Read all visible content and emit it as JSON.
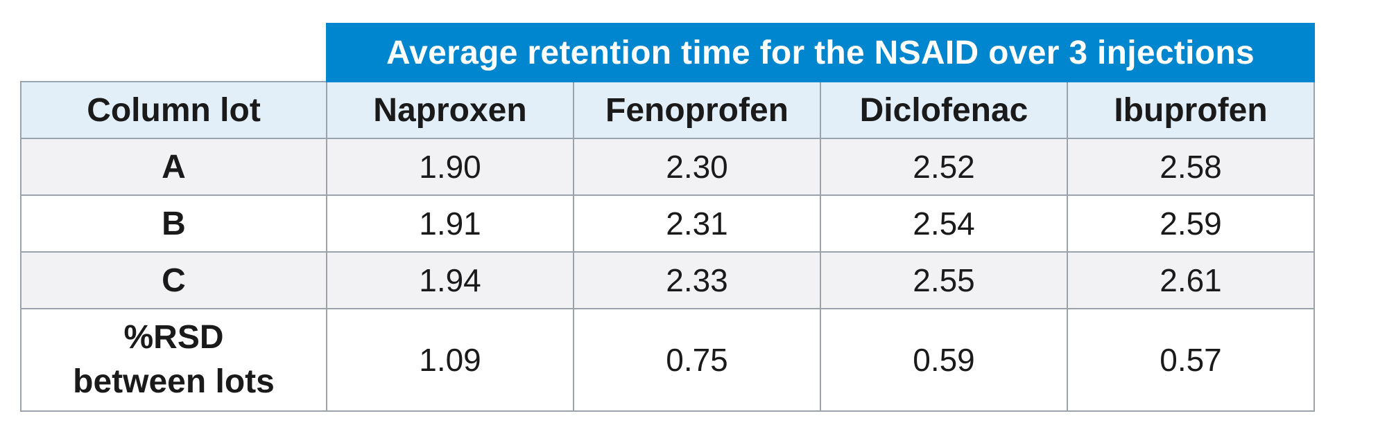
{
  "table": {
    "banner": "Average retention time for the NSAID over 3 injections",
    "row_header": "Column lot",
    "columns": [
      "Naproxen",
      "Fenoprofen",
      "Diclofenac",
      "Ibuprofen"
    ],
    "rows": [
      {
        "label": "A",
        "values": [
          "1.90",
          "2.30",
          "2.52",
          "2.58"
        ]
      },
      {
        "label": "B",
        "values": [
          "1.91",
          "2.31",
          "2.54",
          "2.59"
        ]
      },
      {
        "label": "C",
        "values": [
          "1.94",
          "2.33",
          "2.55",
          "2.61"
        ]
      }
    ],
    "rsd_row": {
      "label_line1": "%RSD",
      "label_line2": "between lots",
      "values": [
        "1.09",
        "0.75",
        "0.59",
        "0.57"
      ]
    }
  },
  "colors": {
    "banner_bg": "#0086ce",
    "header_bg": "#e2eef8",
    "shaded_row_bg": "#f2f2f4",
    "border": "#9aa3ab"
  }
}
